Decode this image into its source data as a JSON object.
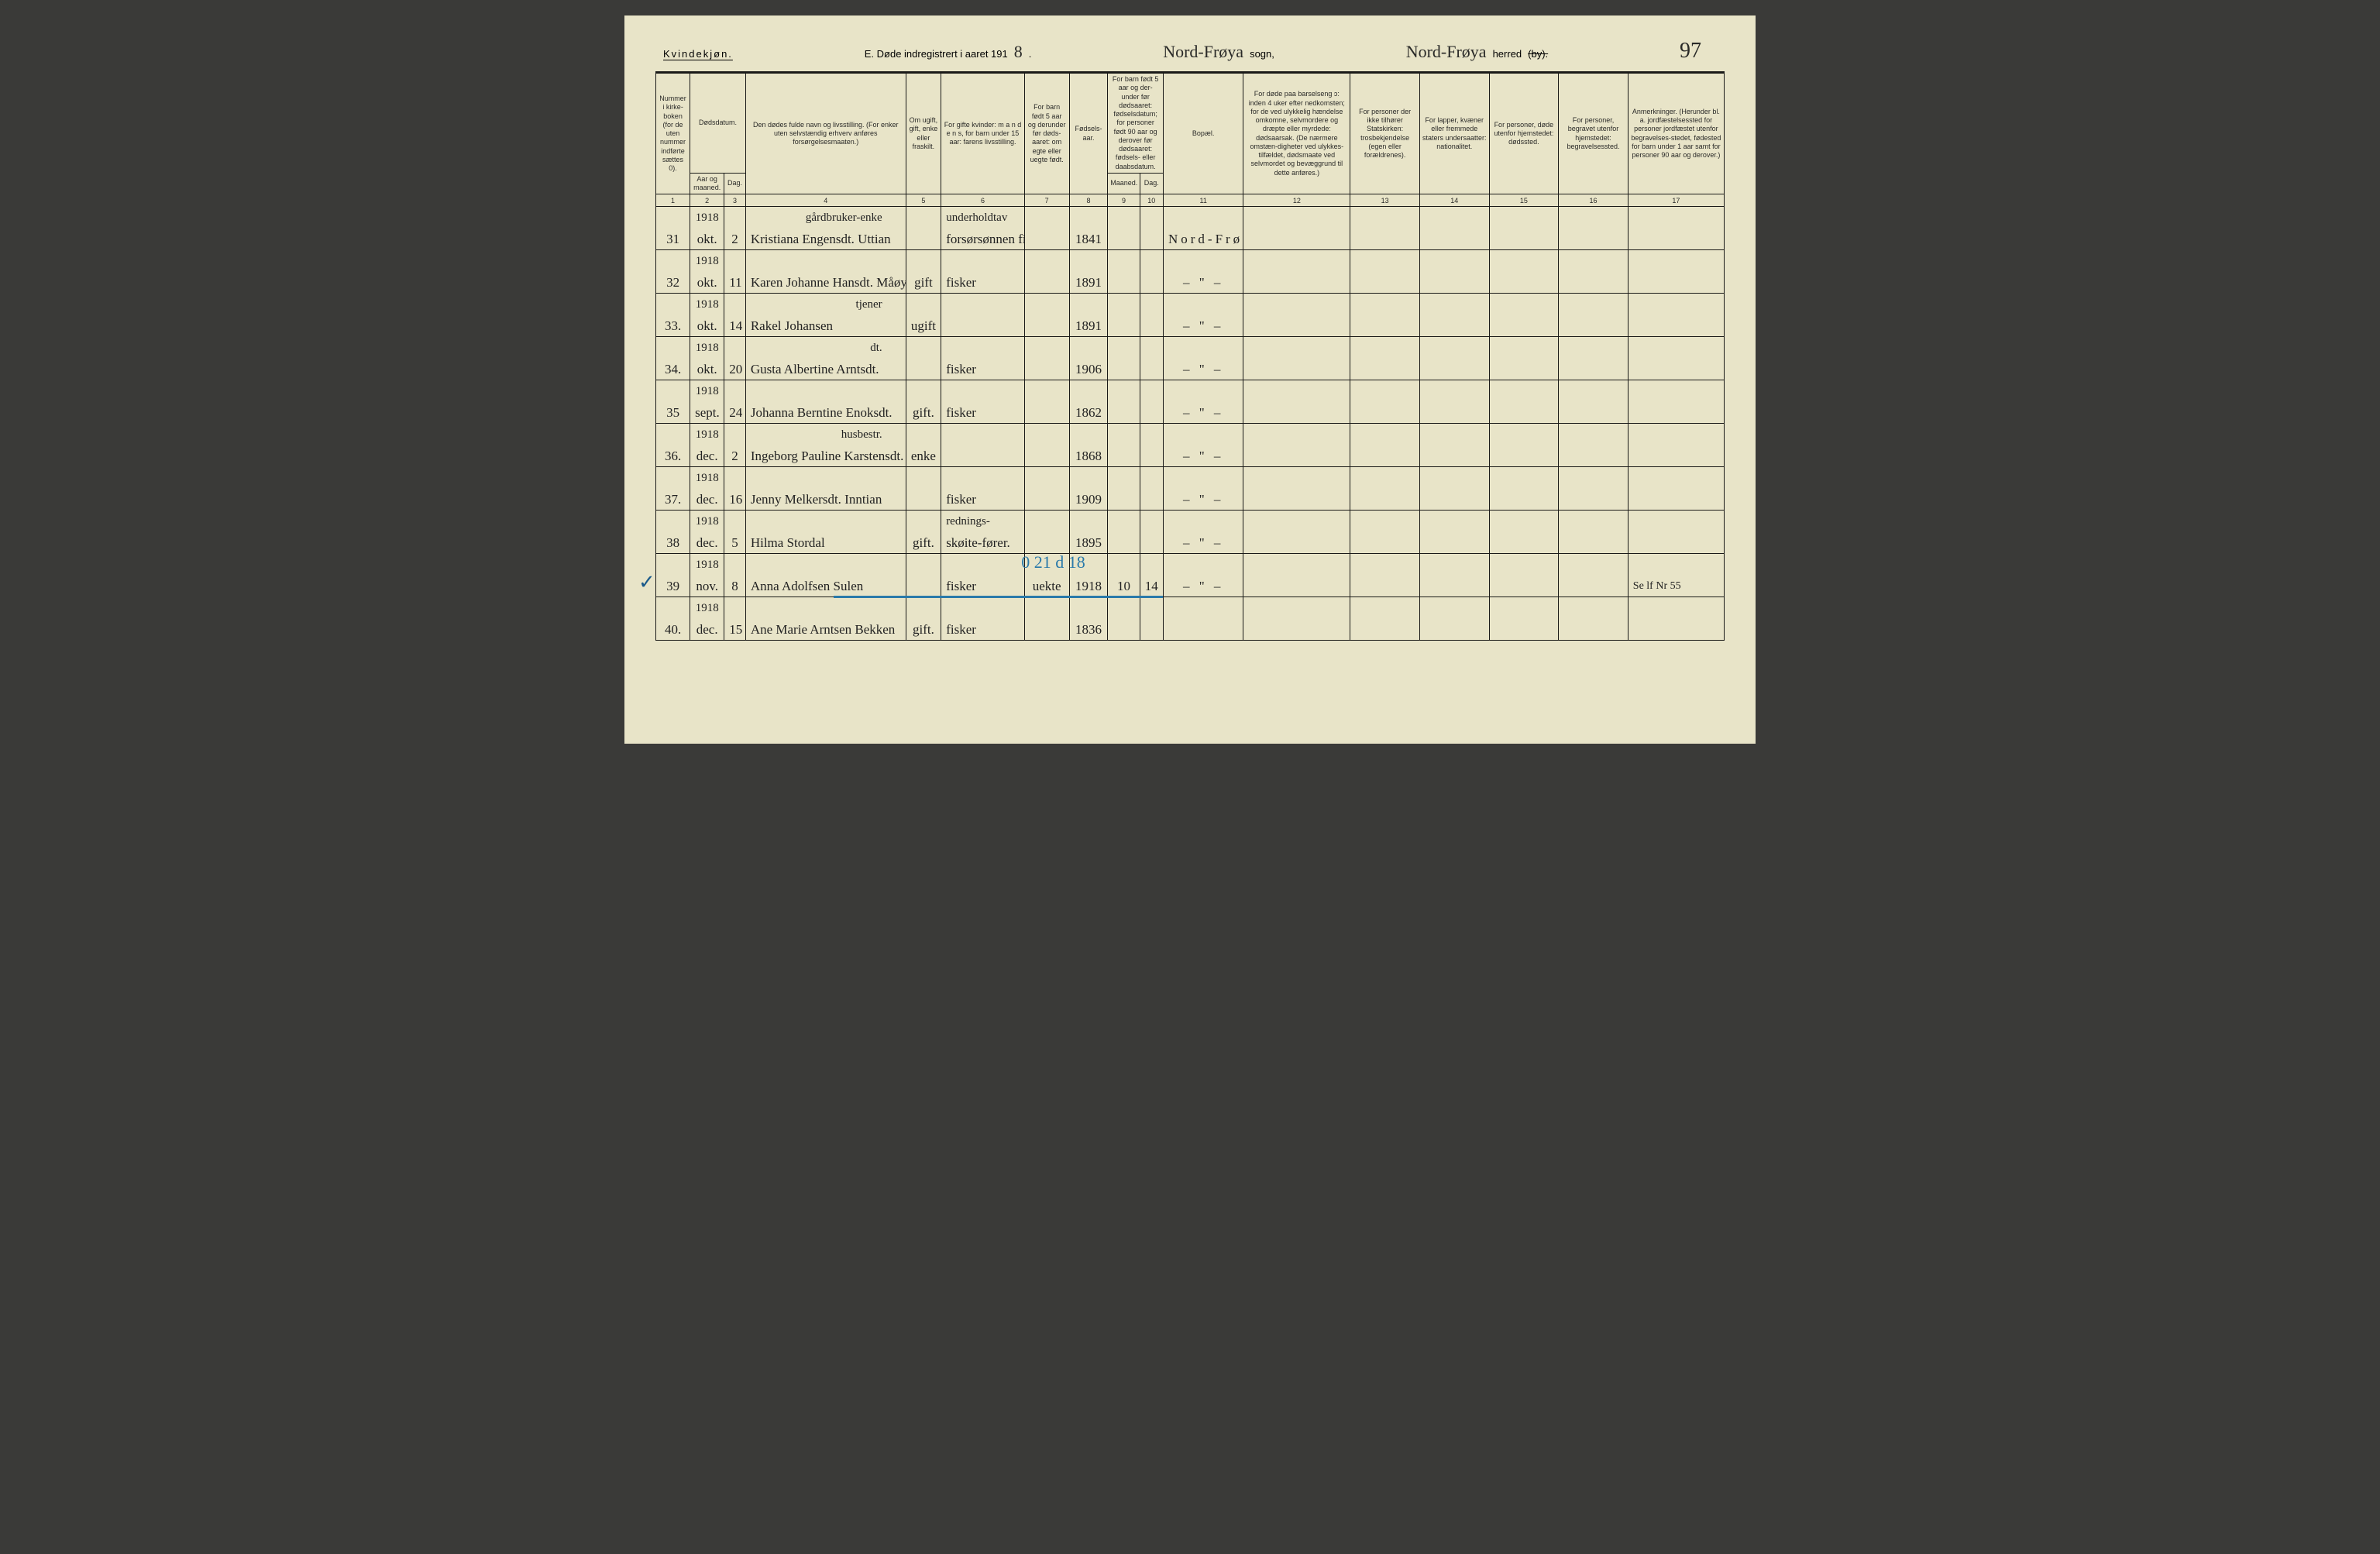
{
  "header": {
    "gender": "Kvindekjøn.",
    "title_prefix": "E.  Døde indregistrert i aaret 191",
    "year_digit": "8",
    "period": ".",
    "sogn_value": "Nord-Frøya",
    "sogn_label": "sogn,",
    "herred_value": "Nord-Frøya",
    "herred_label": "herred",
    "herred_strike": "(by).",
    "page_number": "97"
  },
  "columns": {
    "c1": "Nummer i kirke-boken (for de uten nummer indførte sættes 0).",
    "c2a": "Dødsdatum.",
    "c2b": "Aar og maaned.",
    "c3": "Dag.",
    "c4": "Den dødes fulde navn og livsstilling. (For enker uten selvstændig erhverv anføres forsørgelsesmaaten.)",
    "c5": "Om ugift, gift, enke eller fraskilt.",
    "c6": "For gifte kvinder: m a n d e n s, for barn under 15 aar: farens livsstilling.",
    "c7": "For barn født 5 aar og derunder før døds-aaret: om egte eller uegte født.",
    "c8": "Fødsels-aar.",
    "c9a": "For barn født 5 aar og der-under før dødsaaret: fødselsdatum; for personer født 90 aar og derover før dødsaaret: fødsels- eller daabsdatum.",
    "c9b": "Maaned.",
    "c10": "Dag.",
    "c11": "Bopæl.",
    "c12": "For døde paa barselseng ɔ: inden 4 uker efter nedkomsten; for de ved ulykkelig hændelse omkomne, selvmordere og dræpte eller myrdede: dødsaarsak. (De nærmere omstæn-digheter ved ulykkes-tilfældet, dødsmaate ved selvmordet og bevæggrund til dette anføres.)",
    "c13": "For personer der ikke tilhører Statskirken: trosbekjendelse (egen eller forældrenes).",
    "c14": "For lapper, kvæner eller fremmede staters undersaatter: nationalitet.",
    "c15": "For personer, døde utenfor hjemstedet: dødssted.",
    "c16": "For personer, begravet utenfor hjemstedet: begravelsessted.",
    "c17": "Anmerkninger. (Herunder bl. a. jordfæstelsessted for personer jordfæstet utenfor begravelses-stedet, fødested for barn under 1 aar samt for personer 90 aar og derover.)"
  },
  "colnums": [
    "1",
    "2",
    "3",
    "4",
    "5",
    "6",
    "7",
    "8",
    "9",
    "10",
    "11",
    "12",
    "13",
    "14",
    "15",
    "16",
    "17"
  ],
  "rows": [
    {
      "n": "31",
      "yr": "1918",
      "mo": "okt.",
      "d": "2",
      "name_top": "gårdbruker-enke",
      "name": "Kristiana Engensdt. Uttian",
      "stat": "",
      "occ_top": "underholdtav",
      "occ": "forsørsønnen fisker Martin Ås",
      "c7": "",
      "born": "1841",
      "m": "",
      "dg": "",
      "bop": "Nord-Frøya",
      "note": ""
    },
    {
      "n": "32",
      "yr": "1918",
      "mo": "okt.",
      "d": "11",
      "name_top": "",
      "name": "Karen Johanne Hansdt. Måøy",
      "stat": "gift",
      "occ_top": "",
      "occ": "fisker",
      "c7": "",
      "born": "1891",
      "m": "",
      "dg": "",
      "bop": "– \" –",
      "note": ""
    },
    {
      "n": "33.",
      "yr": "1918",
      "mo": "okt.",
      "d": "14",
      "name_top": "tjener",
      "name": "Rakel Johansen",
      "stat": "ugift",
      "occ_top": "",
      "occ": "",
      "c7": "",
      "born": "1891",
      "m": "",
      "dg": "",
      "bop": "– \" –",
      "note": ""
    },
    {
      "n": "34.",
      "yr": "1918",
      "mo": "okt.",
      "d": "20",
      "name_top": "dt.",
      "name": "Gusta Albertine Arntsdt.",
      "stat": "",
      "occ_top": "",
      "occ": "fisker",
      "c7": "",
      "born": "1906",
      "m": "",
      "dg": "",
      "bop": "– \" –",
      "note": ""
    },
    {
      "n": "35",
      "yr": "1918",
      "mo": "sept.",
      "d": "24",
      "name_top": "",
      "name": "Johanna Berntine Enoksdt.",
      "stat": "gift.",
      "occ_top": "",
      "occ": "fisker",
      "c7": "",
      "born": "1862",
      "m": "",
      "dg": "",
      "bop": "– \" –",
      "note": ""
    },
    {
      "n": "36.",
      "yr": "1918",
      "mo": "dec.",
      "d": "2",
      "name_top": "husbestr.",
      "name": "Ingeborg Pauline Karstensdt. v. Vavik",
      "stat": "enke",
      "occ_top": "",
      "occ": "",
      "c7": "",
      "born": "1868",
      "m": "",
      "dg": "",
      "bop": "– \" –",
      "note": ""
    },
    {
      "n": "37.",
      "yr": "1918",
      "mo": "dec.",
      "d": "16",
      "name_top": "",
      "name": "Jenny Melkersdt. Inntian",
      "stat": "",
      "occ_top": "",
      "occ": "fisker",
      "c7": "",
      "born": "1909",
      "m": "",
      "dg": "",
      "bop": "– \" –",
      "note": ""
    },
    {
      "n": "38",
      "yr": "1918",
      "mo": "dec.",
      "d": "5",
      "name_top": "",
      "name": "Hilma Stordal",
      "stat": "gift.",
      "occ_top": "rednings-",
      "occ": "skøite-fører.",
      "c7": "",
      "born": "1895",
      "m": "",
      "dg": "",
      "bop": "– \" –",
      "note": ""
    },
    {
      "n": "39",
      "yr": "1918",
      "mo": "nov.",
      "d": "8",
      "name_top": "",
      "name": "Anna Adolfsen Sulen",
      "stat": "",
      "occ_top": "",
      "occ": "fisker",
      "c7": "uekte",
      "born": "1918",
      "m": "10",
      "dg": "14",
      "bop": "– \" –",
      "note": "Se lf Nr 55"
    },
    {
      "n": "40.",
      "yr": "1918",
      "mo": "dec.",
      "d": "15",
      "name_top": "",
      "name": "Ane Marie Arntsen Bekken",
      "stat": "gift.",
      "occ_top": "",
      "occ": "fisker",
      "c7": "",
      "born": "1836",
      "m": "",
      "dg": "",
      "bop": "",
      "note": ""
    }
  ],
  "overlays": {
    "check_row": "39",
    "blue_text": "0  21 d 18"
  },
  "style": {
    "col_widths_pct": [
      3.2,
      3.2,
      2.0,
      15.0,
      3.3,
      7.8,
      4.2,
      3.6,
      3.0,
      2.2,
      7.5,
      10.0,
      6.5,
      6.5,
      6.5,
      6.5,
      9.0
    ],
    "page_bg": "#e8e4c8",
    "ink": "#1a1a18",
    "blue": "#2a7aaa"
  }
}
